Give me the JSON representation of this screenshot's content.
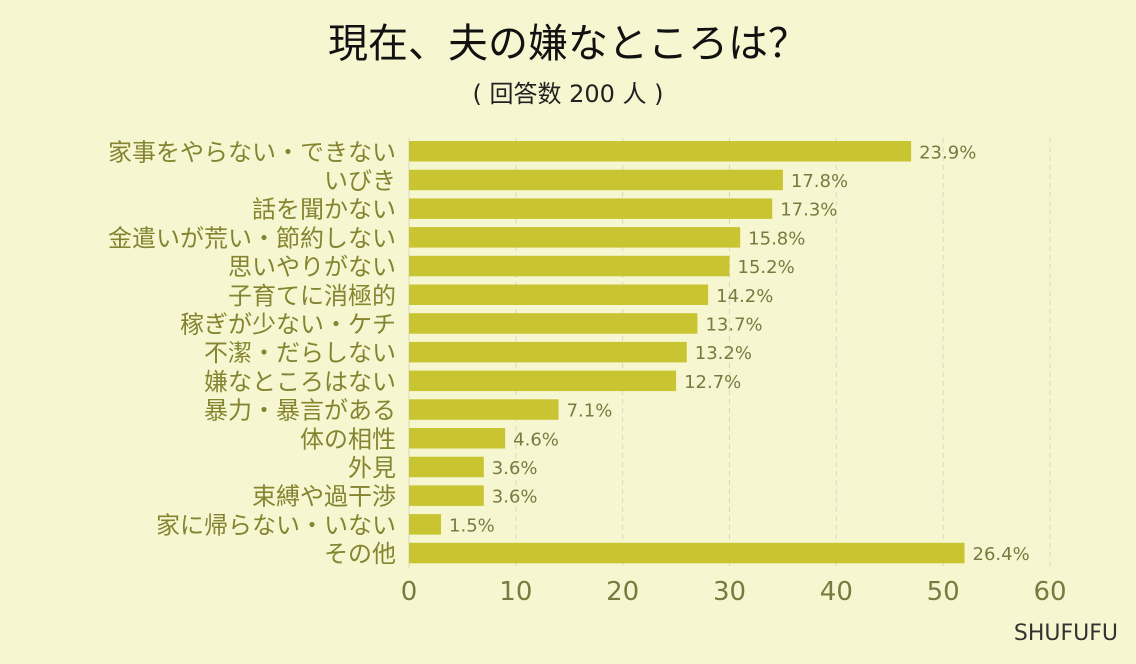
{
  "brand": "SHUFUFU",
  "colors": {
    "background": "#f6f7d0",
    "bar": "#c9c432",
    "label": "#858431",
    "grid": "#d7d8c4"
  },
  "chart_data": {
    "type": "bar",
    "orientation": "horizontal",
    "title": "現在、夫の嫌なところは？",
    "subtitle": "( 回答数 200 人 )",
    "xlim": [
      0,
      60
    ],
    "x_ticks": [
      0,
      10,
      20,
      30,
      40,
      50,
      60
    ],
    "grid": "vertical dashed",
    "categories": [
      "家事をやらない・できない",
      "いびき",
      "話を聞かない",
      "金遣いが荒い・節約しない",
      "思いやりがない",
      "子育てに消極的",
      "稼ぎが少ない・ケチ",
      "不潔・だらしない",
      "嫌なところはない",
      "暴力・暴言がある",
      "体の相性",
      "外見",
      "束縛や過干渉",
      "家に帰らない・いない",
      "その他"
    ],
    "values": [
      47,
      35,
      34,
      31,
      30,
      28,
      27,
      26,
      25,
      14,
      9,
      7,
      7,
      3,
      52
    ],
    "value_labels": [
      "23.9%",
      "17.8%",
      "17.3%",
      "15.8%",
      "15.2%",
      "14.2%",
      "13.7%",
      "13.2%",
      "12.7%",
      "7.1%",
      "4.6%",
      "3.6%",
      "3.6%",
      "1.5%",
      "26.4%"
    ]
  }
}
